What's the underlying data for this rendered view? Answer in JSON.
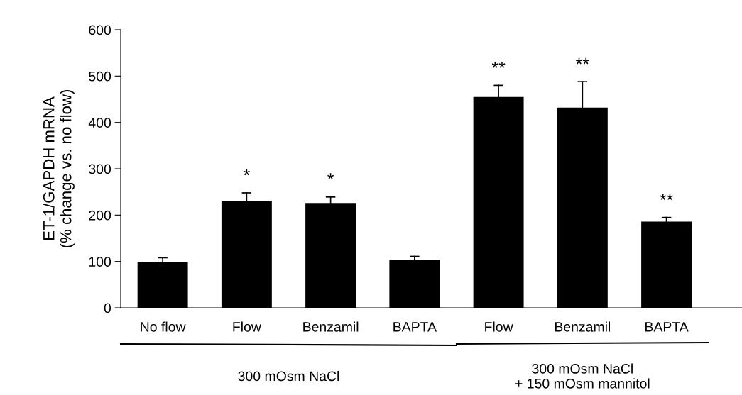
{
  "chart_data": {
    "type": "bar",
    "ylabel": "ET-1/GAPDH mRNA\n(% change vs. no flow)",
    "categories": [
      "No flow",
      "Flow",
      "Benzamil",
      "BAPTA",
      "Flow",
      "Benzamil",
      "BAPTA"
    ],
    "values": [
      98,
      231,
      226,
      104,
      455,
      432,
      186
    ],
    "errors": [
      [
        98,
        108
      ],
      [
        231,
        248
      ],
      [
        226,
        239
      ],
      [
        104,
        111
      ],
      [
        455,
        480
      ],
      [
        432,
        488
      ],
      [
        186,
        195
      ]
    ],
    "value_labels": [
      null,
      "*",
      "*",
      null,
      "**",
      "**",
      "**"
    ],
    "color": "#000000",
    "ylim": [
      0,
      600
    ],
    "yticks": [
      0,
      100,
      200,
      300,
      400,
      500,
      600
    ],
    "grid": false,
    "annotations": [
      "300 mOsm NaCl",
      "300 mOsm NaCl\n+ 150 mOsm mannitol"
    ]
  }
}
